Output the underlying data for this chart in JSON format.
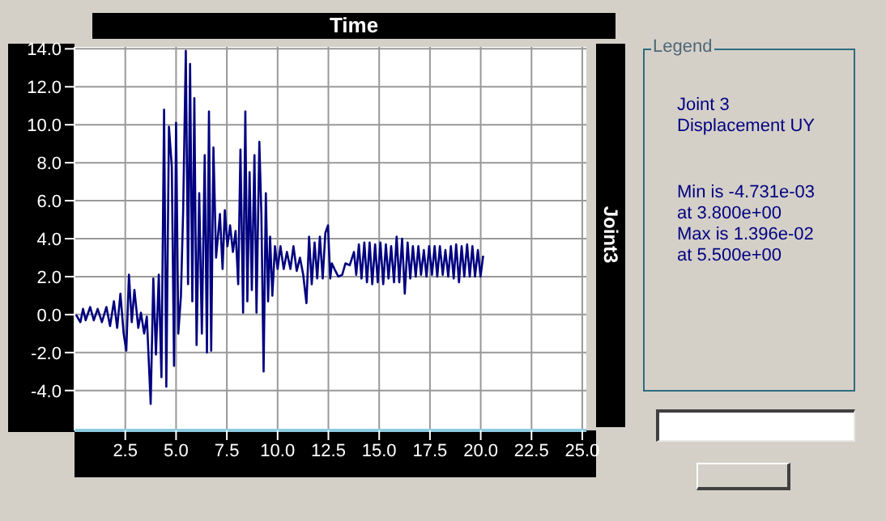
{
  "chart_data": {
    "type": "line",
    "title": "Time",
    "ylabel": "Joint3",
    "annotations": [
      "Legend",
      "Joint 3",
      "Displacement UY",
      "Min is -4.731e-03",
      "at 3.800e+00",
      "Max is 1.396e-02",
      "at 5.500e+00"
    ],
    "x": [
      0.07,
      0.29,
      0.42,
      0.55,
      0.77,
      0.95,
      1.14,
      1.35,
      1.57,
      1.75,
      1.94,
      2.1,
      2.26,
      2.42,
      2.55,
      2.68,
      2.82,
      2.95,
      3.14,
      3.27,
      3.43,
      3.56,
      3.75,
      3.88,
      4.01,
      4.15,
      4.28,
      4.41,
      4.52,
      4.65,
      4.79,
      4.9,
      5.0,
      5.11,
      5.24,
      5.35,
      5.48,
      5.59,
      5.69,
      5.8,
      5.9,
      6.01,
      6.14,
      6.27,
      6.41,
      6.52,
      6.62,
      6.73,
      6.84,
      6.97,
      7.16,
      7.29,
      7.4,
      7.53,
      7.66,
      7.8,
      7.93,
      8.06,
      8.17,
      8.3,
      8.41,
      8.51,
      8.62,
      8.73,
      8.86,
      8.96,
      9.1,
      9.2,
      9.31,
      9.42,
      9.53,
      9.63,
      9.74,
      9.87,
      10.0,
      10.14,
      10.3,
      10.46,
      10.63,
      10.78,
      10.94,
      11.1,
      11.26,
      11.42,
      11.55,
      11.68,
      11.82,
      11.95,
      12.08,
      12.22,
      12.35,
      12.48,
      12.59,
      12.67,
      12.8,
      12.99,
      13.18,
      13.34,
      13.55,
      13.76,
      13.87,
      14.0,
      14.13,
      14.27,
      14.4,
      14.53,
      14.66,
      14.8,
      14.93,
      15.06,
      15.2,
      15.33,
      15.46,
      15.59,
      15.73,
      15.86,
      15.99,
      16.13,
      16.26,
      16.4,
      16.53,
      16.66,
      16.8,
      16.93,
      17.06,
      17.2,
      17.33,
      17.46,
      17.6,
      17.73,
      17.86,
      17.99,
      18.13,
      18.26,
      18.4,
      18.53,
      18.67,
      18.79,
      18.93,
      19.06,
      19.19,
      19.33,
      19.46,
      19.59,
      19.72,
      19.86,
      19.99,
      20.12
    ],
    "series": [
      {
        "color": "#000080",
        "values": [
          0,
          -0.4,
          0.3,
          -0.3,
          0.4,
          -0.3,
          0.3,
          -0.4,
          0.4,
          -0.6,
          0.7,
          -0.7,
          1.1,
          -1.0,
          -1.9,
          2.1,
          -0.4,
          1.3,
          -0.7,
          0.1,
          -1.0,
          -0.1,
          -4.7,
          1.9,
          -2.1,
          2.1,
          -3.3,
          10.8,
          -3.8,
          9.9,
          7.8,
          -2.7,
          10.1,
          -1.0,
          1.0,
          5.5,
          13.9,
          1.6,
          13.2,
          0.7,
          11.4,
          -1.6,
          6.4,
          -1.0,
          8.4,
          -2.0,
          10.7,
          -1.9,
          8.8,
          3.0,
          5.3,
          2.4,
          5.5,
          3.6,
          4.7,
          3.3,
          4.4,
          1.6,
          8.7,
          0.1,
          10.7,
          0.7,
          7.5,
          1.3,
          8.4,
          0.1,
          9.1,
          5.3,
          -3.0,
          6.4,
          0.7,
          4.1,
          1.0,
          3.6,
          2.4,
          3.6,
          2.4,
          3.3,
          2.4,
          3.6,
          2.3,
          3.0,
          2.1,
          0.6,
          4.1,
          1.6,
          3.8,
          1.9,
          4.1,
          1.9,
          4.3,
          4.7,
          1.9,
          2.7,
          2.4,
          2.0,
          2.1,
          2.7,
          2.6,
          3.3,
          2.1,
          3.7,
          1.9,
          3.8,
          1.7,
          3.8,
          1.6,
          3.7,
          1.7,
          3.8,
          1.6,
          3.7,
          1.9,
          3.6,
          1.7,
          4.1,
          1.7,
          4.0,
          1.1,
          3.8,
          1.9,
          3.6,
          2.0,
          3.6,
          2.1,
          3.4,
          2.0,
          3.6,
          2.1,
          3.6,
          2.0,
          3.6,
          2.1,
          3.4,
          2.0,
          3.6,
          1.9,
          3.7,
          1.7,
          3.6,
          2.0,
          3.7,
          2.0,
          3.6,
          2.0,
          3.4,
          2.0,
          3.1
        ]
      }
    ],
    "xlim": [
      0,
      25.2
    ],
    "ylim": [
      -6.1,
      14.1
    ],
    "xticks": [
      2.5,
      {
        "value": 5,
        "label": "5.0"
      },
      7.5,
      {
        "value": 10,
        "label": "10.0"
      },
      12.5,
      {
        "value": 15,
        "label": "15.0"
      },
      17.5,
      {
        "value": 20,
        "label": "20.0"
      },
      22.5,
      {
        "value": 25,
        "label": "25.0"
      }
    ],
    "yticks": [
      {
        "value": -4,
        "label": "-4.0"
      },
      {
        "value": -2,
        "label": "-2.0"
      },
      {
        "value": 0,
        "label": "0.0"
      },
      {
        "value": 2,
        "label": "2.0"
      },
      {
        "value": 4,
        "label": "4.0"
      },
      {
        "value": 6,
        "label": "6.0"
      },
      {
        "value": 8,
        "label": "8.0"
      },
      {
        "value": 10,
        "label": "10.0"
      },
      {
        "value": 12,
        "label": "12.0"
      },
      {
        "value": 14,
        "label": "14.0"
      }
    ],
    "grid": true,
    "marker": "none",
    "line_style": "solid"
  }
}
